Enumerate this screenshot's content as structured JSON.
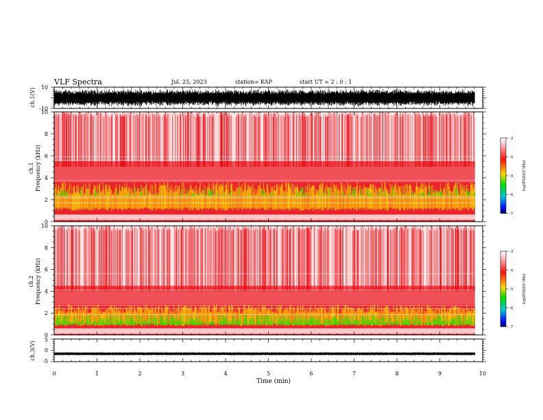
{
  "header": {
    "title": "VLF Spectra",
    "date": "Jul. 25, 2023",
    "station": "station= KAP",
    "start": "start UT =  2 : 0 : 1"
  },
  "colors": {
    "spectrogram_main": "#e8000a",
    "spectrogram_mid": "#ffd000",
    "spectrogram_high": "#22e000",
    "waveform": "#000000"
  },
  "chart_data": [
    {
      "type": "line",
      "id": "ch1-waveform",
      "ylabel": "ch.1(V)",
      "ylim": [
        -10,
        10
      ],
      "y_ticks": [
        "10",
        "-10"
      ],
      "x_range_min": [
        0,
        10
      ],
      "description_series": "dense waveform oscillating between about -8 and 8 V"
    },
    {
      "type": "heatmap",
      "id": "ch1-spectrogram",
      "ylabel": "ch.1 Frequency (kHz)",
      "ylim": [
        0,
        10
      ],
      "y_ticks": [
        "0",
        "2",
        "4",
        "6",
        "8",
        "10"
      ],
      "x_range_min": [
        0,
        10
      ],
      "colorbar": {
        "label": "log(PSD)(V²/Hz)",
        "range": [
          -7,
          -3
        ],
        "ticks": [
          "-3",
          "-4",
          "-5",
          "-6",
          "-7"
        ]
      },
      "intense_band_khz": [
        1.0,
        3.6
      ]
    },
    {
      "type": "heatmap",
      "id": "ch2-spectrogram",
      "ylabel": "ch.2 Frequency (kHz)",
      "ylim": [
        0,
        10
      ],
      "y_ticks": [
        "0",
        "2",
        "4",
        "6",
        "8",
        "10"
      ],
      "x_range_min": [
        0,
        10
      ],
      "colorbar": {
        "label": "log(PSD)(V²/Hz)",
        "range": [
          -7,
          -3
        ],
        "ticks": [
          "-3",
          "-4",
          "-5",
          "-6",
          "-7"
        ]
      },
      "intense_band_khz": [
        0.8,
        2.8
      ]
    },
    {
      "type": "line",
      "id": "ch3-waveform",
      "ylabel": "ch.3(V)",
      "ylim": [
        -5,
        5
      ],
      "y_ticks": [
        "5",
        "0",
        "-5"
      ],
      "x_range_min": [
        0,
        10
      ],
      "approx_level_v": -1.5
    }
  ],
  "x_axis": {
    "label": "Time (min)",
    "ticks": [
      "0",
      "1",
      "2",
      "3",
      "4",
      "5",
      "6",
      "7",
      "8",
      "9",
      "10"
    ],
    "range": [
      0,
      10
    ],
    "data_end_min": 9.82
  }
}
